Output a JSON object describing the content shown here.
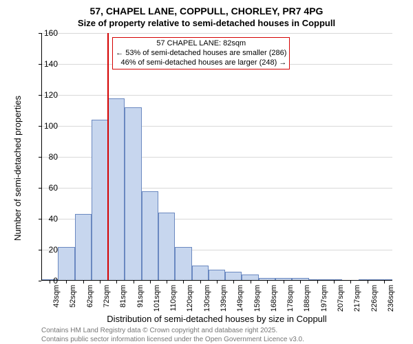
{
  "chart": {
    "type": "histogram",
    "title_main": "57, CHAPEL LANE, COPPULL, CHORLEY, PR7 4PG",
    "title_sub": "Size of property relative to semi-detached houses in Coppull",
    "title_fontsize_main": 14,
    "title_fontsize_sub": 13,
    "xlabel": "Distribution of semi-detached houses by size in Coppull",
    "ylabel": "Number of semi-detached properties",
    "label_fontsize": 13,
    "ylim": [
      0,
      160
    ],
    "ytick_step": 20,
    "yticks": [
      0,
      20,
      40,
      60,
      80,
      100,
      120,
      140,
      160
    ],
    "x_categories": [
      "43sqm",
      "52sqm",
      "62sqm",
      "72sqm",
      "81sqm",
      "91sqm",
      "101sqm",
      "110sqm",
      "120sqm",
      "130sqm",
      "139sqm",
      "149sqm",
      "159sqm",
      "168sqm",
      "178sqm",
      "188sqm",
      "197sqm",
      "207sqm",
      "217sqm",
      "226sqm",
      "236sqm"
    ],
    "values": [
      1,
      22,
      43,
      104,
      118,
      112,
      58,
      44,
      22,
      10,
      7,
      6,
      4,
      2,
      2,
      2,
      1,
      1,
      0,
      1,
      1
    ],
    "bar_color": "#c7d6ee",
    "bar_border_color": "#6a88c0",
    "bar_width": 1.0,
    "grid_color": "#d8d8d8",
    "background_color": "#ffffff",
    "marker": {
      "x_index_after": 4,
      "color": "#d40000",
      "width": 2
    },
    "annotation": {
      "lines": [
        "57 CHAPEL LANE: 82sqm",
        "← 53% of semi-detached houses are smaller (286)",
        "46% of semi-detached houses are larger (248) →"
      ],
      "border_color": "#d40000",
      "fontsize": 11
    }
  },
  "footer": {
    "line1": "Contains HM Land Registry data © Crown copyright and database right 2025.",
    "line2": "Contains public sector information licensed under the Open Government Licence v3.0.",
    "color": "#767676",
    "fontsize": 10
  }
}
